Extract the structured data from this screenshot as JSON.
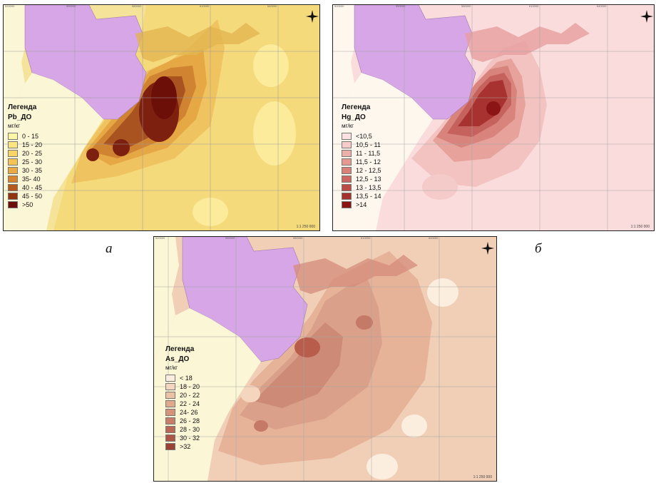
{
  "panels": [
    {
      "id": "a",
      "legend_title": "Легенда",
      "field": "Pb_ДО",
      "unit": "мг/кг",
      "classes": [
        "0 - 15",
        "15 - 20",
        "20 - 25",
        "25 - 30",
        "30 - 35",
        "35- 40",
        "40 - 45",
        "45 - 50",
        ">50"
      ],
      "colors": [
        "#fdf6a6",
        "#fbe582",
        "#f8d567",
        "#f4c556",
        "#eaa945",
        "#d78431",
        "#b55a1f",
        "#8f3512",
        "#6b0f08"
      ],
      "scale": "1:1 250 000",
      "caption": "а",
      "ticks": [
        "520000",
        "550000",
        "580000",
        "610000",
        "640000"
      ]
    },
    {
      "id": "b",
      "legend_title": "Легенда",
      "field": "Hg_ДО",
      "unit": "мг/кг",
      "classes": [
        "<10,5",
        "10,5 - 11",
        "11 - 11,5",
        "11,5 - 12",
        "12 - 12,5",
        "12,5 - 13",
        "13 - 13,5",
        "13,5 - 14",
        ">14"
      ],
      "colors": [
        "#fbe1e1",
        "#f6cbc9",
        "#eeaea9",
        "#e49891",
        "#d9807a",
        "#cc6662",
        "#bb4c48",
        "#a43330",
        "#8b1515"
      ],
      "scale": "1:1 250 000",
      "caption": "б",
      "ticks": [
        "520000",
        "550000",
        "580000",
        "610000",
        "640000"
      ]
    },
    {
      "id": "c",
      "legend_title": "Легенда",
      "field": "As_ДО",
      "unit": "мг/кг",
      "classes": [
        "< 18",
        "18 - 20",
        "20 - 22",
        "22 - 24",
        "24- 26",
        "26 - 28",
        "28 - 30",
        "30 - 32",
        ">32"
      ],
      "colors": [
        "#fbeede",
        "#f4d5bd",
        "#ecc1a5",
        "#e1a98c",
        "#d6937a",
        "#c97c68",
        "#bb6756",
        "#ad5546",
        "#9c4234"
      ],
      "scale": "1:1 250 000",
      "caption": "",
      "ticks": [
        "520000",
        "550000",
        "580000",
        "610000",
        "640000"
      ]
    }
  ]
}
